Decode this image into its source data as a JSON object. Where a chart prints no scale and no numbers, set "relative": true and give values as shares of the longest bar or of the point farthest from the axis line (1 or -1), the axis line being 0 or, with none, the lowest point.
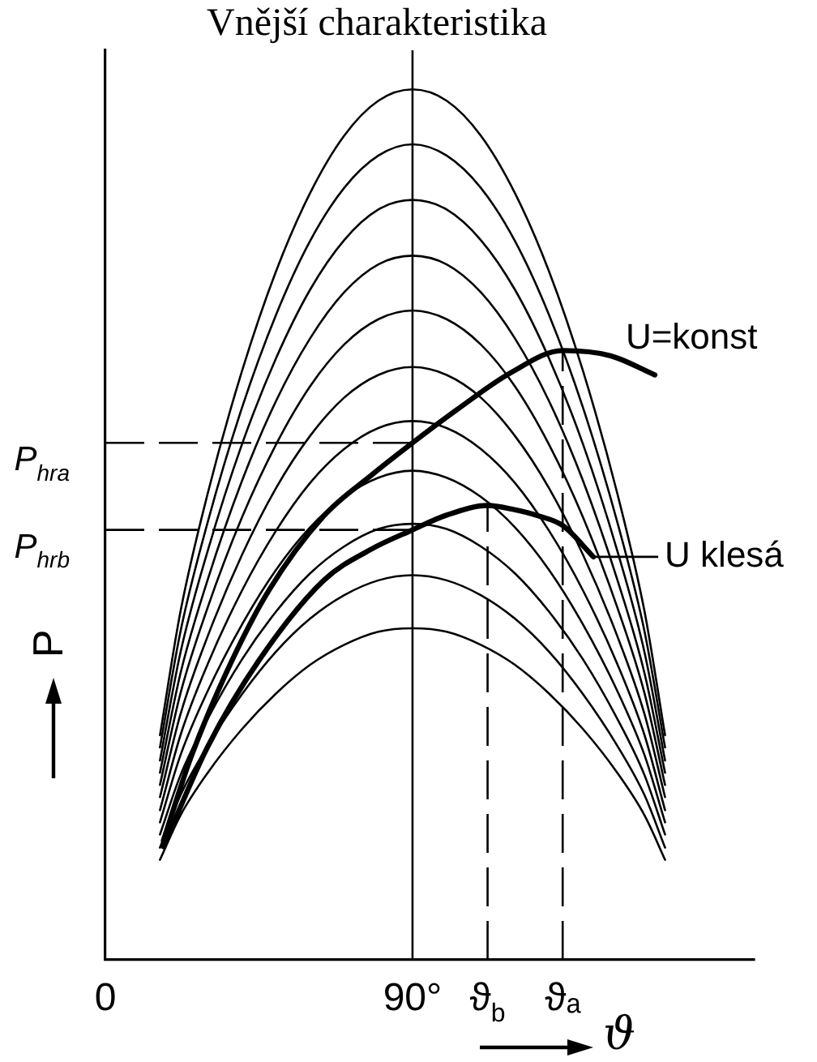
{
  "chart_data": {
    "type": "line",
    "title": "Vnější charakteristika",
    "xlabel": "ϑ",
    "ylabel": "P",
    "relative": true,
    "grid": false,
    "xlim": [
      0,
      190
    ],
    "xticks": [
      0,
      {
        "value": 90,
        "label": "90°"
      },
      {
        "value": 112,
        "label": "ϑ$_{b}$"
      },
      {
        "value": 134,
        "label": "ϑₐ"
      }
    ],
    "x": [
      16,
      22,
      30,
      40,
      50,
      60,
      70,
      80,
      90,
      100,
      110,
      120,
      130,
      140,
      150,
      158,
      164
    ],
    "series": [
      {
        "color": "#000000",
        "values": [
          0.258,
          0.4,
          0.536,
          0.676,
          0.791,
          0.881,
          0.947,
          0.987,
          1,
          0.987,
          0.947,
          0.881,
          0.791,
          0.676,
          0.536,
          0.4,
          0.258
        ]
      },
      {
        "color": "#000000",
        "values": [
          0.244,
          0.377,
          0.503,
          0.634,
          0.741,
          0.826,
          0.887,
          0.924,
          0.937,
          0.924,
          0.887,
          0.826,
          0.741,
          0.634,
          0.503,
          0.377,
          0.244
        ]
      },
      {
        "color": "#000000",
        "values": [
          0.229,
          0.353,
          0.47,
          0.592,
          0.691,
          0.77,
          0.827,
          0.862,
          0.873,
          0.862,
          0.827,
          0.77,
          0.691,
          0.592,
          0.47,
          0.353,
          0.229
        ]
      },
      {
        "color": "#000000",
        "values": [
          0.215,
          0.329,
          0.437,
          0.55,
          0.642,
          0.714,
          0.767,
          0.799,
          0.809,
          0.799,
          0.767,
          0.714,
          0.642,
          0.55,
          0.437,
          0.329,
          0.215
        ]
      },
      {
        "color": "#000000",
        "values": [
          0.201,
          0.306,
          0.405,
          0.508,
          0.592,
          0.659,
          0.707,
          0.736,
          0.746,
          0.736,
          0.707,
          0.659,
          0.592,
          0.508,
          0.405,
          0.306,
          0.201
        ]
      },
      {
        "color": "#000000",
        "values": [
          0.187,
          0.282,
          0.372,
          0.465,
          0.542,
          0.602,
          0.646,
          0.672,
          0.681,
          0.672,
          0.646,
          0.602,
          0.542,
          0.465,
          0.372,
          0.282,
          0.187
        ]
      },
      {
        "color": "#000000",
        "values": [
          0.172,
          0.258,
          0.34,
          0.424,
          0.493,
          0.548,
          0.587,
          0.611,
          0.619,
          0.611,
          0.587,
          0.548,
          0.493,
          0.424,
          0.34,
          0.258,
          0.172
        ]
      },
      {
        "color": "#000000",
        "values": [
          0.158,
          0.235,
          0.309,
          0.385,
          0.448,
          0.497,
          0.532,
          0.554,
          0.562,
          0.554,
          0.532,
          0.497,
          0.448,
          0.385,
          0.309,
          0.235,
          0.158
        ]
      },
      {
        "color": "#000000",
        "values": [
          0.144,
          0.212,
          0.277,
          0.345,
          0.4,
          0.444,
          0.475,
          0.495,
          0.501,
          0.495,
          0.475,
          0.444,
          0.4,
          0.345,
          0.277,
          0.212,
          0.144
        ]
      },
      {
        "color": "#000000",
        "values": [
          0.129,
          0.189,
          0.246,
          0.305,
          0.354,
          0.392,
          0.419,
          0.436,
          0.442,
          0.436,
          0.419,
          0.392,
          0.354,
          0.305,
          0.246,
          0.189,
          0.129
        ]
      },
      {
        "color": "#000000",
        "values": [
          0.115,
          0.166,
          0.215,
          0.265,
          0.306,
          0.339,
          0.362,
          0.377,
          0.381,
          0.377,
          0.362,
          0.339,
          0.306,
          0.265,
          0.215,
          0.166,
          0.115
        ]
      },
      {
        "name": "U=konst",
        "color": "#000000",
        "x": [
          17,
          25,
          37,
          48,
          64,
          78,
          90,
          103,
          119,
          134,
          148,
          161
        ],
        "values": [
          0.137,
          0.232,
          0.343,
          0.425,
          0.51,
          0.557,
          0.594,
          0.632,
          0.675,
          0.7,
          0.694,
          0.672
        ]
      },
      {
        "name": "U klesá",
        "color": "#000000",
        "x": [
          17,
          30,
          45,
          64,
          78,
          90,
          100,
          112,
          119,
          127,
          134,
          143
        ],
        "values": [
          0.13,
          0.245,
          0.344,
          0.436,
          0.472,
          0.494,
          0.511,
          0.522,
          0.518,
          0.51,
          0.499,
          0.463
        ]
      },
      {
        "color": "#000000",
        "line_style": "dashed",
        "x": [
          0,
          90
        ],
        "values": [
          0.594,
          0.594
        ]
      },
      {
        "color": "#000000",
        "line_style": "dashed",
        "x": [
          0,
          90
        ],
        "values": [
          0.494,
          0.494
        ]
      },
      {
        "color": "#000000",
        "line_style": "dashed",
        "x": [
          112,
          112
        ],
        "values": [
          0,
          0.522
        ]
      },
      {
        "color": "#000000",
        "line_style": "dashed",
        "x": [
          134,
          134
        ],
        "values": [
          0,
          0.7
        ]
      }
    ],
    "ref_lines": [
      {
        "axis": "x",
        "value": 90
      }
    ],
    "annotations": [
      {
        "text": "P$_{hra}$",
        "x": 0,
        "y": 0.594
      },
      {
        "text": "P$_{hrb}$",
        "x": 0,
        "y": 0.494
      }
    ]
  }
}
